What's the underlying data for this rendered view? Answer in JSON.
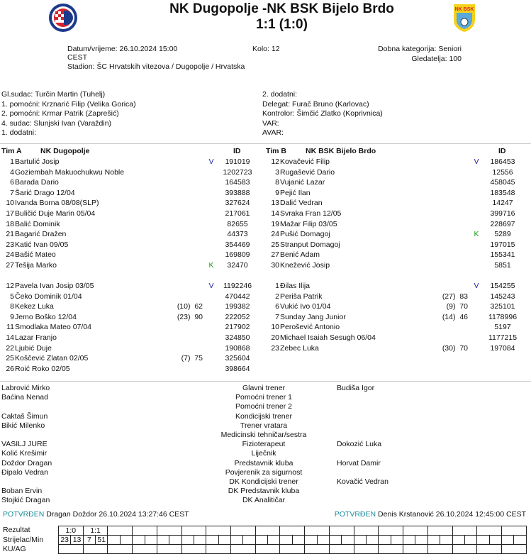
{
  "header": {
    "title": "NK Dugopolje -NK BSK Bijelo Brdo",
    "score": "1:1 (1:0)",
    "home_logo_text": "NK Dugopolje",
    "away_logo_text": "NK BSK"
  },
  "info": {
    "datetime": "Datum/vrijeme: 26.10.2024 15:00",
    "tz": "CEST",
    "round": "Kolo: 12",
    "category": "Dobna kategorija: Seniori",
    "attendance": "Gledatelja: 100",
    "stadium": "Stadion: ŠC Hrvatskih vitezova / Dugopolje / Hrvatska"
  },
  "officials_left": [
    "Gl.sudac: Turčin Martin (Tuhelj)",
    "1. pomoćni: Krznarić Filip (Velika Gorica)",
    "2. pomoćni: Krmar Patrik (Zaprešić)",
    "4. sudac: Slunjski Ivan (Varaždin)",
    "1. dodatni:"
  ],
  "officials_right": [
    "2. dodatni:",
    "Delegat: Furač Bruno (Karlovac)",
    "Kontrolor: Šimčić Zlatko (Koprivnica)",
    "VAR:",
    "AVAR:"
  ],
  "team_a": {
    "label": "Tim A",
    "name": "NK Dugopolje",
    "id_header": "ID",
    "starters": [
      [
        "1",
        "Bartulić Josip",
        "",
        "V",
        "191019"
      ],
      [
        "4",
        "Goziembah Makuochukwu Noble",
        "",
        "",
        "1202723"
      ],
      [
        "6",
        "Barada Dario",
        "",
        "",
        "164583"
      ],
      [
        "7",
        "Šarić Drago 12/04",
        "",
        "",
        "393888"
      ],
      [
        "10",
        "Ivanda Borna 08/08(SLP)",
        "",
        "",
        "327624"
      ],
      [
        "17",
        "Buličić Duje Marin 05/04",
        "",
        "",
        "217061"
      ],
      [
        "18",
        "Balić Dominik",
        "",
        "",
        "82655"
      ],
      [
        "21",
        "Bagarić Dražen",
        "",
        "",
        "44373"
      ],
      [
        "23",
        "Katić Ivan 09/05",
        "",
        "",
        "354469"
      ],
      [
        "24",
        "Bašić Mateo",
        "",
        "",
        "169809"
      ],
      [
        "27",
        "Tešija Marko",
        "",
        "K",
        "32470"
      ]
    ],
    "subs": [
      [
        "12",
        "Pavela Ivan Josip 03/05",
        "",
        "V",
        "1192246"
      ],
      [
        "5",
        "Čeko Dominik 01/04",
        "",
        "",
        "470442"
      ],
      [
        "8",
        "Kekez Luka",
        "(10)  62",
        "",
        "199382"
      ],
      [
        "9",
        "Jemo Boško 12/04",
        "(23)  90",
        "",
        "222052"
      ],
      [
        "11",
        "Smodlaka Mateo 07/04",
        "",
        "",
        "217902"
      ],
      [
        "14",
        "Lazar Franjo",
        "",
        "",
        "324850"
      ],
      [
        "22",
        "Ljubić Duje",
        "",
        "",
        "190868"
      ],
      [
        "25",
        "Koščević Zlatan 02/05",
        "(7)  75",
        "",
        "325604"
      ],
      [
        "26",
        "Roić Roko 02/05",
        "",
        "",
        "398664"
      ]
    ]
  },
  "team_b": {
    "label": "Tim B",
    "name": "NK BSK Bijelo Brdo",
    "id_header": "ID",
    "starters": [
      [
        "12",
        "Kovačević Filip",
        "",
        "V",
        "186453"
      ],
      [
        "3",
        "Rugašević Dario",
        "",
        "",
        "12556"
      ],
      [
        "8",
        "Vujanić Lazar",
        "",
        "",
        "458045"
      ],
      [
        "9",
        "Pejić Ilan",
        "",
        "",
        "183548"
      ],
      [
        "13",
        "Dalić Vedran",
        "",
        "",
        "14247"
      ],
      [
        "14",
        "Svraka Fran 12/05",
        "",
        "",
        "399716"
      ],
      [
        "19",
        "Mažar Filip 03/05",
        "",
        "",
        "228697"
      ],
      [
        "24",
        "Pušić Domagoj",
        "",
        "K",
        "5289"
      ],
      [
        "25",
        "Stranput Domagoj",
        "",
        "",
        "197015"
      ],
      [
        "27",
        "Benić Adam",
        "",
        "",
        "155341"
      ],
      [
        "30",
        "Knežević Josip",
        "",
        "",
        "5851"
      ]
    ],
    "subs": [
      [
        "1",
        "Đilas Ilija",
        "",
        "V",
        "154255"
      ],
      [
        "2",
        "Periša Patrik",
        "(27)  83",
        "",
        "145243"
      ],
      [
        "6",
        "Vukić Ivo 01/04",
        "(9)  70",
        "",
        "325101"
      ],
      [
        "7",
        "Sunday Jang Junior",
        "(14)  46",
        "",
        "1178996"
      ],
      [
        "10",
        "Perošević Antonio",
        "",
        "",
        "5197"
      ],
      [
        "20",
        "Michael Isaiah Sesugh 06/04",
        "",
        "",
        "1177215"
      ],
      [
        "23",
        "Zebec Luka",
        "(30)  70",
        "",
        "197084"
      ]
    ]
  },
  "staff": [
    [
      "Labrović Mirko",
      "Glavni trener",
      "Budiša Igor"
    ],
    [
      "Baćina Nenad",
      "Pomoćni trener 1",
      ""
    ],
    [
      "",
      "Pomoćni trener 2",
      ""
    ],
    [
      "Caktaš Šimun",
      "Kondicijski trener",
      ""
    ],
    [
      "Bikić Milenko",
      "Trener vratara",
      ""
    ],
    [
      "",
      "Medicinski tehničar/sestra",
      ""
    ],
    [
      "VASILJ JURE",
      "Fizioterapeut",
      "Dokozić Luka"
    ],
    [
      "Kolić Krešimir",
      "Liječnik",
      ""
    ],
    [
      "Doždor Dragan",
      "Predstavnik kluba",
      "Horvat Damir"
    ],
    [
      "Đipalo Vedran",
      "Povjerenik za sigurnost",
      ""
    ],
    [
      "",
      "DK Kondicijski trener",
      "Kovačić Vedran"
    ],
    [
      "Boban Ervin",
      "DK Predstavnik kluba",
      ""
    ],
    [
      "Stojkić Dragan",
      "DK Analitičar",
      ""
    ]
  ],
  "confirm": {
    "status": "POTVRĐEN",
    "left": "Dragan Doždor 26.10.2024 13:27:46 CEST",
    "right": "Denis Krstanović 26.10.2024 12:45:00 CEST",
    "status_color": "#1a8c9c"
  },
  "grid": {
    "labels": [
      "Rezultat",
      "Strijelac/Min",
      "KU/AG"
    ],
    "results": [
      "1:0",
      "1:1"
    ],
    "scorers": [
      "23",
      "13",
      "7",
      "51"
    ]
  }
}
